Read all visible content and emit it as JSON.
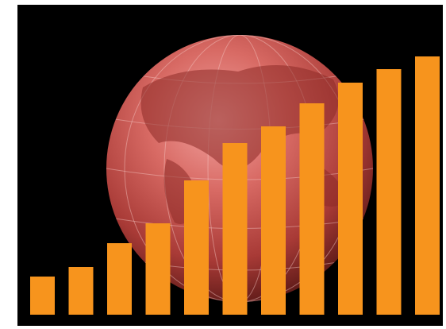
{
  "chart_data": {
    "type": "bar",
    "values": [
      48,
      60,
      90,
      115,
      169,
      216,
      237,
      266,
      292,
      309,
      325
    ],
    "color": "#f7941d"
  }
}
